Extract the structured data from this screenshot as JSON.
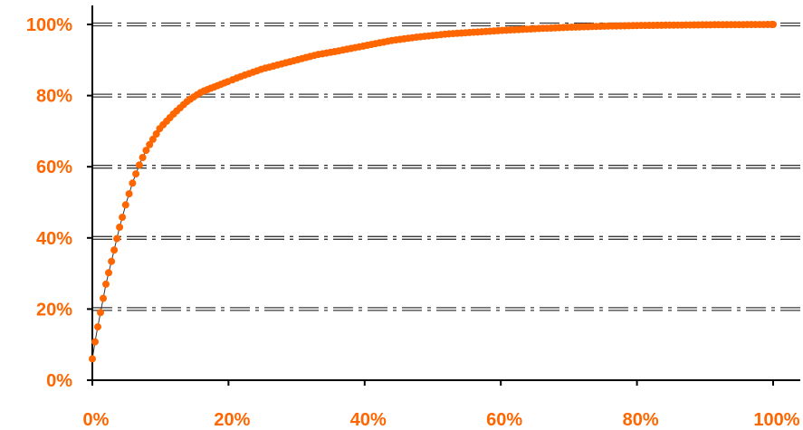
{
  "colors": {
    "accent": "#FF6600",
    "axis": "#000000",
    "grid": "#3a3a3a"
  },
  "chart_data": {
    "type": "scatter",
    "title": "",
    "xlabel": "",
    "ylabel": "",
    "xlim": [
      0,
      100
    ],
    "ylim": [
      0,
      100
    ],
    "x_ticks": [
      "0%",
      "20%",
      "40%",
      "60%",
      "80%",
      "100%"
    ],
    "y_ticks": [
      "0%",
      "20%",
      "40%",
      "60%",
      "80%",
      "100%"
    ],
    "grid": "horizontal dash-dot lines",
    "legend": "none",
    "marker_color": "#FF6600",
    "series": [
      {
        "x": [
          0,
          0.5,
          1,
          1.5,
          2,
          2.5,
          3,
          3.5,
          4,
          5,
          6,
          7,
          8,
          9,
          10,
          12,
          14,
          16,
          18,
          20,
          22,
          25,
          28,
          30,
          33,
          36,
          40,
          44,
          48,
          52,
          56,
          60,
          65,
          70,
          75,
          80,
          85,
          90,
          95,
          100
        ],
        "y": [
          6,
          12,
          17,
          22,
          27,
          31,
          35,
          39,
          43,
          50,
          56,
          61,
          65,
          68,
          71,
          75,
          78.5,
          81,
          82.5,
          84,
          85.5,
          87.5,
          89,
          90,
          91.5,
          92.5,
          94,
          95.5,
          96.5,
          97.3,
          97.8,
          98.3,
          98.8,
          99.2,
          99.5,
          99.7,
          99.8,
          99.9,
          99.95,
          100
        ]
      }
    ]
  }
}
